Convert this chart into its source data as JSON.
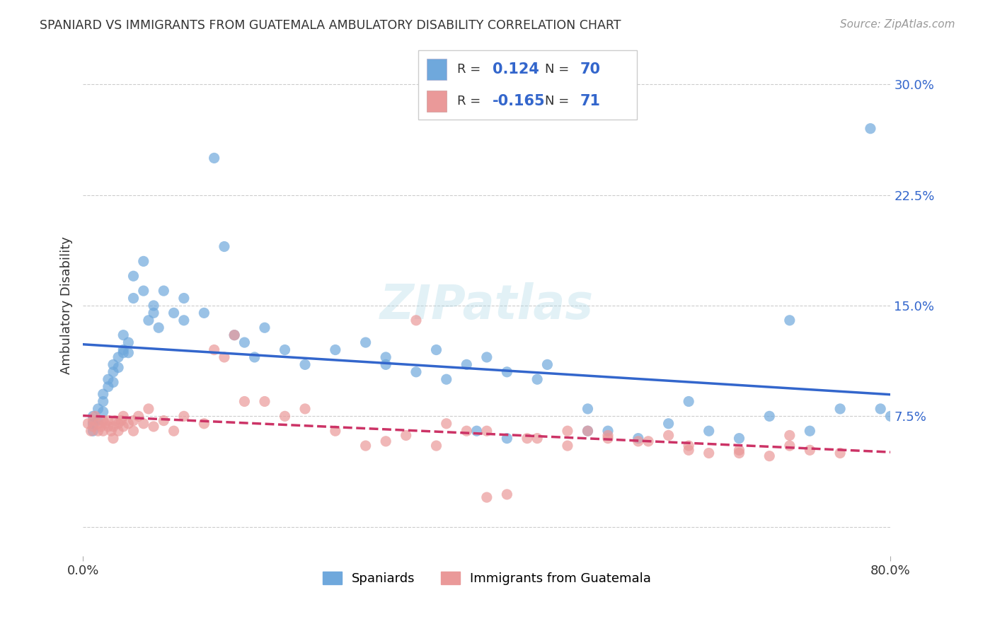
{
  "title": "SPANIARD VS IMMIGRANTS FROM GUATEMALA AMBULATORY DISABILITY CORRELATION CHART",
  "source": "Source: ZipAtlas.com",
  "ylabel": "Ambulatory Disability",
  "yticks": [
    "",
    "7.5%",
    "15.0%",
    "22.5%",
    "30.0%"
  ],
  "ytick_vals": [
    0.0,
    0.075,
    0.15,
    0.225,
    0.3
  ],
  "xmin": 0.0,
  "xmax": 0.8,
  "ymin": -0.02,
  "ymax": 0.32,
  "blue_R": "0.124",
  "blue_N": "70",
  "pink_R": "-0.165",
  "pink_N": "71",
  "blue_color": "#6fa8dc",
  "pink_color": "#ea9999",
  "blue_line_color": "#3366cc",
  "pink_line_color": "#cc3366",
  "legend_label_blue": "Spaniards",
  "legend_label_pink": "Immigrants from Guatemala",
  "blue_x": [
    0.01,
    0.01,
    0.01,
    0.015,
    0.015,
    0.02,
    0.02,
    0.02,
    0.025,
    0.025,
    0.03,
    0.03,
    0.03,
    0.035,
    0.035,
    0.04,
    0.04,
    0.04,
    0.045,
    0.045,
    0.05,
    0.05,
    0.06,
    0.06,
    0.065,
    0.07,
    0.07,
    0.075,
    0.08,
    0.09,
    0.1,
    0.1,
    0.12,
    0.13,
    0.14,
    0.15,
    0.16,
    0.17,
    0.18,
    0.2,
    0.22,
    0.25,
    0.28,
    0.3,
    0.35,
    0.38,
    0.4,
    0.42,
    0.45,
    0.5,
    0.52,
    0.55,
    0.58,
    0.6,
    0.62,
    0.65,
    0.68,
    0.7,
    0.72,
    0.75,
    0.3,
    0.33,
    0.36,
    0.39,
    0.42,
    0.46,
    0.5,
    0.78,
    0.79,
    0.8
  ],
  "blue_y": [
    0.07,
    0.075,
    0.065,
    0.08,
    0.072,
    0.09,
    0.085,
    0.078,
    0.1,
    0.095,
    0.11,
    0.105,
    0.098,
    0.115,
    0.108,
    0.12,
    0.13,
    0.118,
    0.125,
    0.118,
    0.17,
    0.155,
    0.16,
    0.18,
    0.14,
    0.15,
    0.145,
    0.135,
    0.16,
    0.145,
    0.14,
    0.155,
    0.145,
    0.25,
    0.19,
    0.13,
    0.125,
    0.115,
    0.135,
    0.12,
    0.11,
    0.12,
    0.125,
    0.115,
    0.12,
    0.11,
    0.115,
    0.105,
    0.1,
    0.065,
    0.065,
    0.06,
    0.07,
    0.085,
    0.065,
    0.06,
    0.075,
    0.14,
    0.065,
    0.08,
    0.11,
    0.105,
    0.1,
    0.065,
    0.06,
    0.11,
    0.08,
    0.27,
    0.08,
    0.075
  ],
  "pink_x": [
    0.005,
    0.008,
    0.01,
    0.01,
    0.012,
    0.015,
    0.015,
    0.018,
    0.02,
    0.02,
    0.022,
    0.025,
    0.025,
    0.028,
    0.03,
    0.03,
    0.032,
    0.035,
    0.035,
    0.038,
    0.04,
    0.04,
    0.045,
    0.05,
    0.05,
    0.055,
    0.06,
    0.065,
    0.07,
    0.08,
    0.09,
    0.1,
    0.12,
    0.13,
    0.14,
    0.15,
    0.16,
    0.18,
    0.2,
    0.22,
    0.25,
    0.28,
    0.3,
    0.32,
    0.35,
    0.38,
    0.4,
    0.42,
    0.45,
    0.48,
    0.5,
    0.52,
    0.55,
    0.58,
    0.6,
    0.62,
    0.65,
    0.68,
    0.7,
    0.75,
    0.33,
    0.36,
    0.4,
    0.44,
    0.48,
    0.52,
    0.56,
    0.6,
    0.65,
    0.7,
    0.72
  ],
  "pink_y": [
    0.07,
    0.065,
    0.072,
    0.068,
    0.075,
    0.065,
    0.07,
    0.068,
    0.072,
    0.065,
    0.07,
    0.068,
    0.072,
    0.065,
    0.068,
    0.06,
    0.072,
    0.07,
    0.065,
    0.072,
    0.075,
    0.068,
    0.07,
    0.072,
    0.065,
    0.075,
    0.07,
    0.08,
    0.068,
    0.072,
    0.065,
    0.075,
    0.07,
    0.12,
    0.115,
    0.13,
    0.085,
    0.085,
    0.075,
    0.08,
    0.065,
    0.055,
    0.058,
    0.062,
    0.055,
    0.065,
    0.02,
    0.022,
    0.06,
    0.055,
    0.065,
    0.06,
    0.058,
    0.062,
    0.055,
    0.05,
    0.052,
    0.048,
    0.055,
    0.05,
    0.14,
    0.07,
    0.065,
    0.06,
    0.065,
    0.062,
    0.058,
    0.052,
    0.05,
    0.062,
    0.052
  ]
}
